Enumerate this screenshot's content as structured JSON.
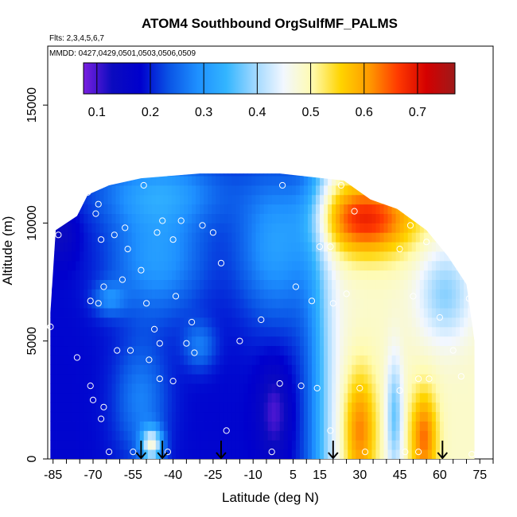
{
  "chart_data": {
    "type": "heatmap",
    "title": "ATOM4 Southbound OrgSulfMF_PALMS",
    "subtitle_flights": "Flts: 2,3,4,5,6,7",
    "subtitle_dates": "MMDD: 0427,0429,0501,0503,0506,0509",
    "xlabel": "Latitude (deg N)",
    "ylabel": "Altitude (m)",
    "xlim": [
      -87,
      80
    ],
    "ylim": [
      0,
      17500
    ],
    "x_ticks": [
      "-85",
      "-70",
      "-55",
      "-40",
      "-25",
      "-10",
      "5",
      "15",
      "30",
      "45",
      "60",
      "75"
    ],
    "y_ticks": [
      "0",
      "5000",
      "10000",
      "15000"
    ],
    "colorbar": {
      "range": [
        0.075,
        0.77
      ],
      "tick_labels": [
        "0.1",
        "0.2",
        "0.3",
        "0.4",
        "0.5",
        "0.6",
        "0.7"
      ],
      "tick_values": [
        0.1,
        0.2,
        0.3,
        0.4,
        0.5,
        0.6,
        0.7
      ],
      "colors": [
        "#7a1fe0",
        "#0b0bbf",
        "#0000cd",
        "#0a55e6",
        "#1e90ff",
        "#33b5ff",
        "#9fd8ff",
        "#f2f7ff",
        "#fffbb0",
        "#ffd400",
        "#ff9a00",
        "#ff3a00",
        "#d40000",
        "#9e1a1a"
      ]
    },
    "arrow_latitudes": [
      -52,
      -44,
      -22,
      20,
      61
    ],
    "sample_points": [
      [
        -86,
        5600
      ],
      [
        -83,
        9500
      ],
      [
        -76,
        4300
      ],
      [
        -72,
        11300
      ],
      [
        -71,
        6700
      ],
      [
        -71,
        3100
      ],
      [
        -70,
        2500
      ],
      [
        -69,
        10400
      ],
      [
        -68,
        6600
      ],
      [
        -68,
        10800
      ],
      [
        -67,
        9300
      ],
      [
        -67,
        1700
      ],
      [
        -66,
        2200
      ],
      [
        -66,
        7300
      ],
      [
        -64,
        300
      ],
      [
        -62,
        9500
      ],
      [
        -61,
        4600
      ],
      [
        -59,
        7600
      ],
      [
        -58,
        9800
      ],
      [
        -57,
        8900
      ],
      [
        -56,
        4600
      ],
      [
        -55,
        300
      ],
      [
        -52,
        8000
      ],
      [
        -51,
        11600
      ],
      [
        -50,
        6600
      ],
      [
        -49,
        4200
      ],
      [
        -47,
        5500
      ],
      [
        -46,
        9600
      ],
      [
        -45,
        4900
      ],
      [
        -45,
        3400
      ],
      [
        -44,
        10100
      ],
      [
        -42,
        300
      ],
      [
        -40,
        3300
      ],
      [
        -40,
        9300
      ],
      [
        -39,
        6900
      ],
      [
        -37,
        10100
      ],
      [
        -35,
        4900
      ],
      [
        -33,
        5800
      ],
      [
        -32,
        4500
      ],
      [
        -29,
        9900
      ],
      [
        -25,
        9600
      ],
      [
        -22,
        8300
      ],
      [
        -20,
        1200
      ],
      [
        -15,
        5000
      ],
      [
        -7,
        5900
      ],
      [
        -3,
        300
      ],
      [
        0,
        3200
      ],
      [
        1,
        11600
      ],
      [
        6,
        7300
      ],
      [
        8,
        3100
      ],
      [
        12,
        6700
      ],
      [
        14,
        3000
      ],
      [
        15,
        9000
      ],
      [
        19,
        9000
      ],
      [
        19,
        1200
      ],
      [
        20,
        6600
      ],
      [
        23,
        11600
      ],
      [
        25,
        7000
      ],
      [
        28,
        10500
      ],
      [
        30,
        3000
      ],
      [
        32,
        300
      ],
      [
        45,
        8900
      ],
      [
        45,
        2900
      ],
      [
        47,
        300
      ],
      [
        49,
        9900
      ],
      [
        50,
        6900
      ],
      [
        52,
        3400
      ],
      [
        52,
        300
      ],
      [
        55,
        9200
      ],
      [
        56,
        3400
      ],
      [
        60,
        6000
      ],
      [
        63,
        9700
      ],
      [
        65,
        4600
      ],
      [
        68,
        3500
      ],
      [
        71,
        6800
      ],
      [
        72,
        200
      ]
    ]
  }
}
